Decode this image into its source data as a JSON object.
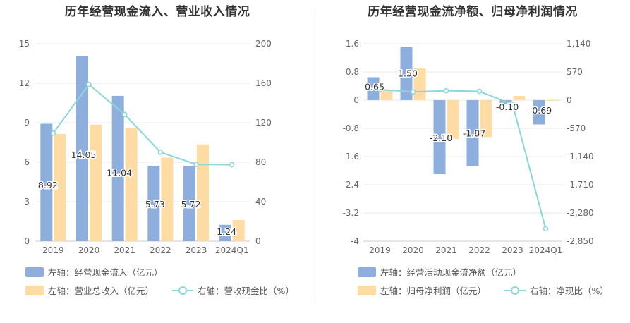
{
  "colors": {
    "bar1": "#8eaedd",
    "bar2": "#ffdca3",
    "line": "#8ad6d8",
    "grid": "#e4e8f2",
    "axis_text": "#666666"
  },
  "chart_data": [
    {
      "type": "bar",
      "title": "历年经营现金流入、营业收入情况",
      "categories": [
        "2019",
        "2020",
        "2021",
        "2022",
        "2023",
        "2024Q1"
      ],
      "left_axis": {
        "min": 0,
        "max": 15,
        "ticks": [
          "0",
          "3",
          "6",
          "9",
          "12",
          "15"
        ]
      },
      "right_axis": {
        "min": 0,
        "max": 200,
        "ticks": [
          "0",
          "40",
          "80",
          "120",
          "160",
          "200"
        ]
      },
      "series": [
        {
          "name": "左轴：经营现金流入（亿元）",
          "kind": "bar",
          "axis": "left",
          "values": [
            8.92,
            14.05,
            11.04,
            5.73,
            5.72,
            1.24
          ],
          "labels": [
            "8.92",
            "14.05",
            "11.04",
            "5.73",
            "5.72",
            "1.24"
          ]
        },
        {
          "name": "左轴：营业总收入（亿元）",
          "kind": "bar",
          "axis": "left",
          "values": [
            8.15,
            8.85,
            8.6,
            6.35,
            7.35,
            1.6
          ]
        },
        {
          "name": "右轴：营收现金比（%）",
          "kind": "line",
          "axis": "right",
          "values": [
            109.4,
            158.8,
            128.4,
            90.2,
            77.8,
            77.5
          ]
        }
      ],
      "legend": {
        "placement": "bottom-left"
      },
      "grid": true
    },
    {
      "type": "bar",
      "title": "历年经营现金流净额、归母净利润情况",
      "categories": [
        "2019",
        "2020",
        "2021",
        "2022",
        "2023",
        "2024Q1"
      ],
      "left_axis": {
        "min": -4,
        "max": 1.6,
        "ticks": [
          "-4",
          "-3.2",
          "-2.4",
          "-1.6",
          "-0.8",
          "0",
          "0.8",
          "1.6"
        ]
      },
      "right_axis": {
        "min": -2850,
        "max": 1140,
        "ticks": [
          "-2,850",
          "-2,280",
          "-1,710",
          "-1,140",
          "-570",
          "0",
          "570",
          "1,140"
        ]
      },
      "series": [
        {
          "name": "左轴：经营活动现金流净额（亿元）",
          "kind": "bar",
          "axis": "left",
          "values": [
            0.65,
            1.5,
            -2.1,
            -1.87,
            -0.1,
            -0.69
          ],
          "labels": [
            "0.65",
            "1.50",
            "-2.10",
            "-1.87",
            "-0.10",
            "-0.69"
          ]
        },
        {
          "name": "左轴：归母净利润（亿元）",
          "kind": "bar",
          "axis": "left",
          "values": [
            0.3,
            0.9,
            -1.1,
            -1.05,
            0.12,
            -0.02
          ]
        },
        {
          "name": "右轴：净现比（%）",
          "kind": "line",
          "axis": "right",
          "values": [
            214,
            167,
            191,
            178,
            -83,
            -2600
          ]
        }
      ],
      "legend": {
        "placement": "bottom-left"
      },
      "grid": true
    }
  ]
}
